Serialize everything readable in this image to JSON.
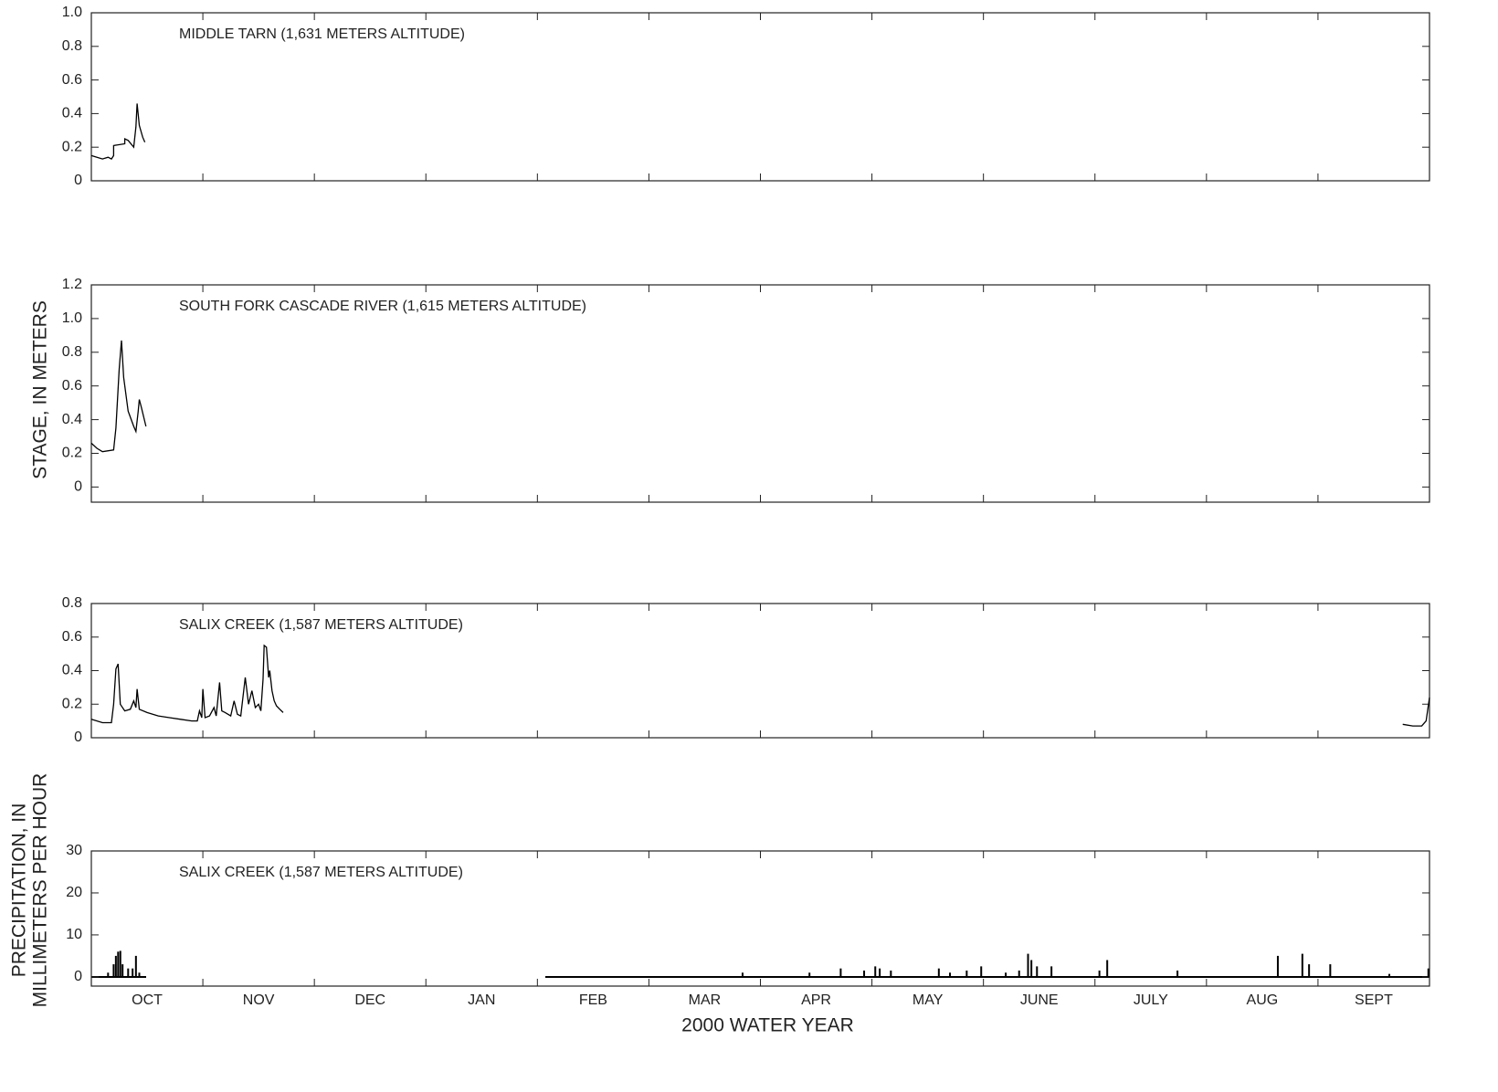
{
  "chart_data": [
    {
      "type": "line",
      "title": "MIDDLE TARN (1,631 METERS ALTITUDE)",
      "ylabel": "STAGE, IN METERS",
      "color": "#000000",
      "xlim": [
        0,
        12
      ],
      "x": [
        0,
        0.05,
        0.1,
        0.15,
        0.18,
        0.2,
        0.2,
        0.3,
        0.3,
        0.33,
        0.38,
        0.4,
        0.41,
        0.43,
        0.46,
        0.48
      ],
      "values": [
        0.15,
        0.14,
        0.13,
        0.14,
        0.13,
        0.15,
        0.21,
        0.22,
        0.25,
        0.24,
        0.2,
        0.32,
        0.46,
        0.33,
        0.26,
        0.23
      ],
      "ylim": [
        0,
        1
      ],
      "yticks": [
        0,
        0.2,
        0.4,
        0.6,
        0.8,
        {
          "value": 1,
          "label": "1.0"
        }
      ]
    },
    {
      "type": "line",
      "title": "SOUTH FORK CASCADE RIVER (1,615 METERS ALTITUDE)",
      "color": "#000000",
      "xlim": [
        0,
        12
      ],
      "x": [
        0,
        0.05,
        0.1,
        0.2,
        0.22,
        0.25,
        0.27,
        0.29,
        0.33,
        0.38,
        0.4,
        0.42,
        0.43,
        0.45,
        0.49
      ],
      "values": [
        0.26,
        0.23,
        0.21,
        0.22,
        0.35,
        0.7,
        0.87,
        0.65,
        0.45,
        0.36,
        0.33,
        0.45,
        0.52,
        0.47,
        0.36
      ],
      "ylim": [
        -0.09,
        1.2
      ],
      "yticks": [
        0,
        0.2,
        0.4,
        0.6,
        0.8,
        {
          "value": 1,
          "label": "1.0"
        },
        1.2
      ]
    },
    {
      "type": "line",
      "title": "SALIX CREEK (1,587 METERS ALTITUDE)",
      "color": "#000000",
      "xlim": [
        0,
        12
      ],
      "x": [
        0,
        0.1,
        0.18,
        0.2,
        0.22,
        0.24,
        0.26,
        0.3,
        0.35,
        0.38,
        0.4,
        0.41,
        0.43,
        0.5,
        0.6,
        0.7,
        0.8,
        0.9,
        0.95,
        0.97,
        0.99,
        1.0,
        1.02,
        1.06,
        1.1,
        1.12,
        1.15,
        1.17,
        1.2,
        1.25,
        1.28,
        1.31,
        1.34,
        1.38,
        1.41,
        1.44,
        1.47,
        1.5,
        1.52,
        1.54,
        1.55,
        1.57,
        1.59,
        1.6,
        1.62,
        1.64,
        1.66,
        1.69,
        1.72,
        null,
        11.76,
        11.85,
        11.93,
        11.97,
        12
      ],
      "values": [
        0.11,
        0.09,
        0.09,
        0.2,
        0.41,
        0.44,
        0.2,
        0.16,
        0.17,
        0.22,
        0.18,
        0.29,
        0.17,
        0.15,
        0.13,
        0.12,
        0.11,
        0.1,
        0.1,
        0.16,
        0.12,
        0.29,
        0.12,
        0.13,
        0.18,
        0.13,
        0.33,
        0.16,
        0.15,
        0.13,
        0.22,
        0.14,
        0.13,
        0.36,
        0.2,
        0.28,
        0.18,
        0.2,
        0.16,
        0.35,
        0.55,
        0.54,
        0.36,
        0.4,
        0.28,
        0.22,
        0.19,
        0.17,
        0.15,
        null,
        0.08,
        0.07,
        0.07,
        0.1,
        0.24
      ],
      "ylim": [
        0,
        0.8
      ],
      "yticks": [
        0,
        0.2,
        0.4,
        0.6,
        0.8
      ]
    },
    {
      "type": "bar",
      "title": "SALIX CREEK (1,587 METERS ALTITUDE)",
      "ylabel": [
        "PRECIPITATION, IN",
        "MILLIMETERS PER HOUR"
      ],
      "xlabel": "2000 WATER YEAR",
      "color": "#000000",
      "categories": [
        "OCT",
        "NOV",
        "DEC",
        "JAN",
        "FEB",
        "MAR",
        "APR",
        "MAY",
        "JUNE",
        "JULY",
        "AUG",
        "SEPT"
      ],
      "xlim": [
        0,
        12
      ],
      "x": [
        0.15,
        0.2,
        0.22,
        0.24,
        0.26,
        0.28,
        0.33,
        0.37,
        0.4,
        0.43,
        5.84,
        6.44,
        6.72,
        6.93,
        7.03,
        7.07,
        7.17,
        7.6,
        7.7,
        7.85,
        7.98,
        8.2,
        8.32,
        8.4,
        8.43,
        8.48,
        8.61,
        9.04,
        9.11,
        9.74,
        10.64,
        10.86,
        10.92,
        11.11,
        11.64,
        11.99
      ],
      "values": [
        1,
        3,
        5,
        6,
        6.2,
        3,
        2,
        2,
        5,
        1,
        1,
        1,
        2,
        1.5,
        2.5,
        2,
        1.5,
        2,
        1,
        1.5,
        2.5,
        1,
        1.5,
        5.5,
        4,
        2.5,
        2.5,
        1.5,
        4,
        1.5,
        5,
        5.5,
        3,
        3,
        0.7,
        2
      ],
      "ylim": [
        -2.2,
        30
      ],
      "yticks": [
        0,
        10,
        20,
        30
      ]
    }
  ]
}
